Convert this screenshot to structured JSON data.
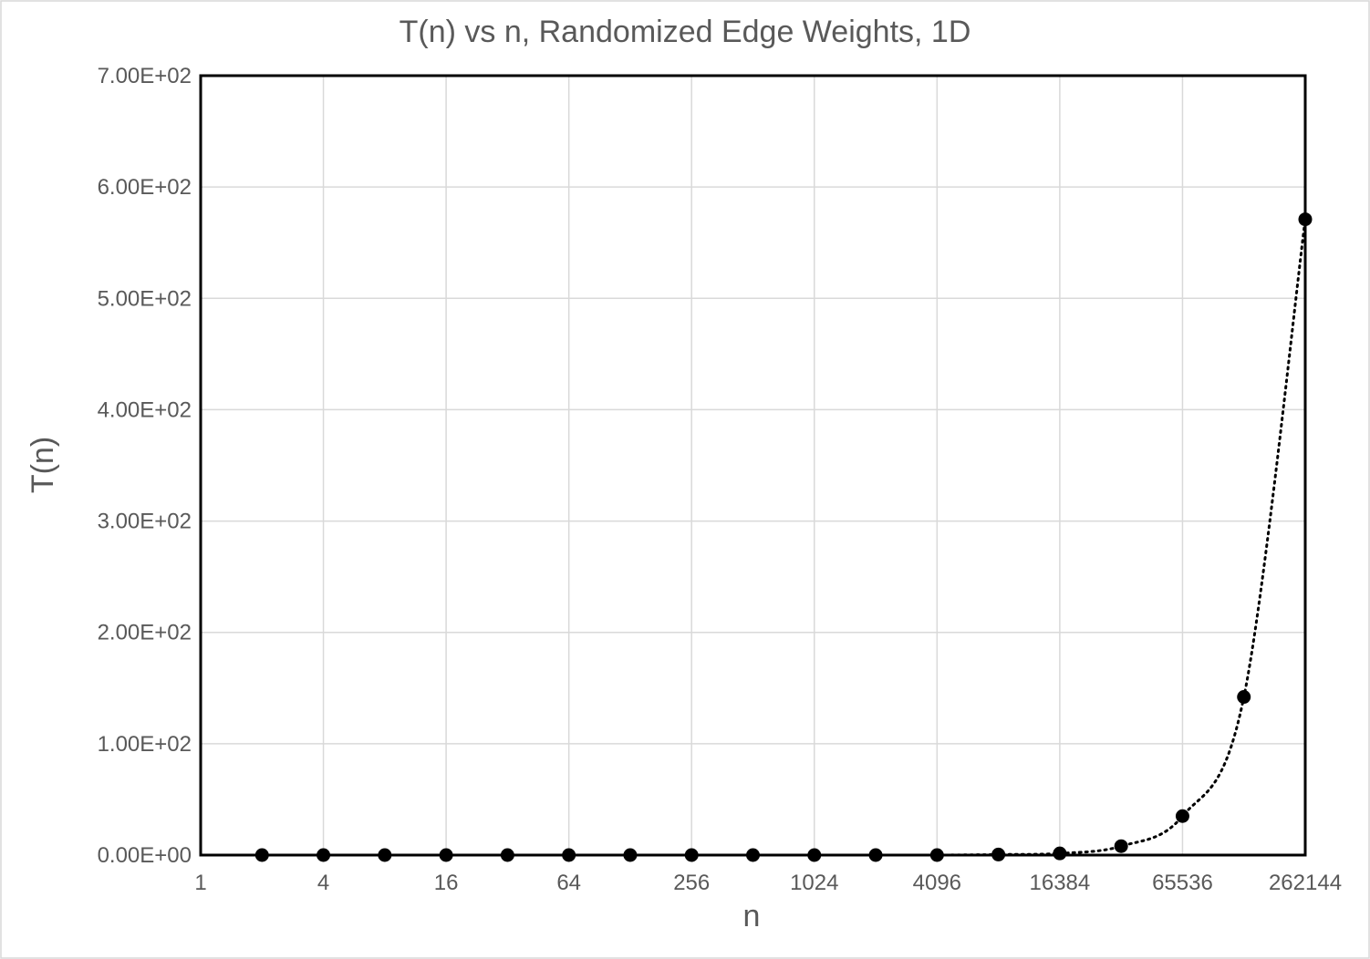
{
  "chart_data": {
    "type": "scatter",
    "title": "T(n) vs n, Randomized Edge Weights, 1D",
    "xlabel": "n",
    "ylabel": "T(n)",
    "x_scale": "log2",
    "xlim": [
      1,
      262144
    ],
    "ylim": [
      0,
      700
    ],
    "x_ticks": [
      1,
      4,
      16,
      64,
      256,
      1024,
      4096,
      16384,
      65536,
      262144
    ],
    "x_tick_labels": [
      "1",
      "4",
      "16",
      "64",
      "256",
      "1024",
      "4096",
      "16384",
      "65536",
      "262144"
    ],
    "y_ticks": [
      0,
      100,
      200,
      300,
      400,
      500,
      600,
      700
    ],
    "y_tick_labels": [
      "0.00E+00",
      "1.00E+02",
      "2.00E+02",
      "3.00E+02",
      "4.00E+02",
      "5.00E+02",
      "6.00E+02",
      "7.00E+02"
    ],
    "grid": true,
    "legend": "none",
    "series": [
      {
        "marker": "circle",
        "marker_color": "#000000",
        "line_style": "dotted",
        "x": [
          2,
          4,
          8,
          16,
          32,
          64,
          128,
          256,
          512,
          1024,
          2048,
          4096,
          8192,
          16384,
          32768,
          65536,
          131072,
          262144
        ],
        "y": [
          0,
          0,
          0,
          0,
          0,
          0,
          0,
          0,
          0,
          0,
          0,
          0,
          0.5,
          1.5,
          8,
          35,
          142,
          571
        ]
      }
    ]
  }
}
